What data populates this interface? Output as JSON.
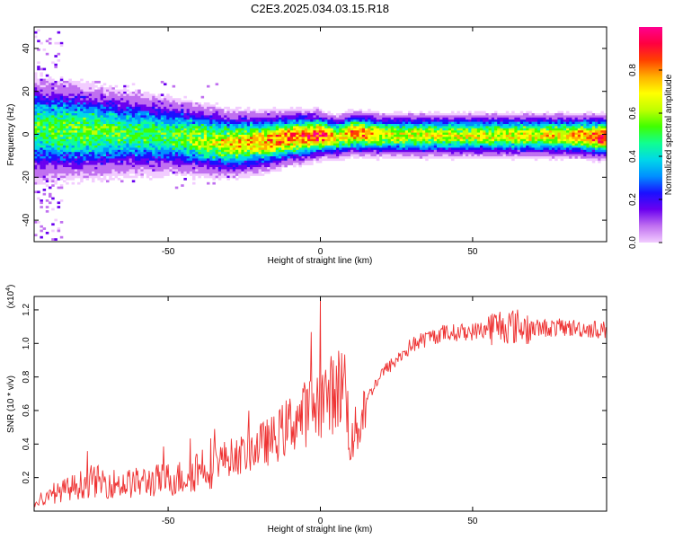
{
  "title": "C2E3.2025.034.03.15.R18",
  "chart_data": [
    {
      "type": "heatmap",
      "xlabel": "Height of straight line (km)",
      "ylabel": "Frequency (Hz)",
      "xlim": [
        -94,
        94
      ],
      "ylim": [
        -50,
        50
      ],
      "xticks": [
        -50,
        0,
        50
      ],
      "yticks": [
        -40,
        -20,
        0,
        20,
        40
      ],
      "colorbar": {
        "label": "Normalized spectral amplitude",
        "range": [
          0,
          1
        ],
        "ticks": [
          "0.0",
          "0.2",
          "0.4",
          "0.6",
          "0.8"
        ],
        "colors": [
          "#f2ccff",
          "#c070f0",
          "#6a00f0",
          "#1a10ff",
          "#0090ff",
          "#00d8e8",
          "#10ff90",
          "#40ff00",
          "#c0ff00",
          "#ffff00",
          "#ffb000",
          "#ff4000",
          "#ff0040",
          "#ff0090"
        ]
      },
      "ridge": {
        "x": [
          -94,
          -80,
          -65,
          -50,
          -40,
          -30,
          -20,
          -10,
          0,
          5,
          10,
          20,
          40,
          60,
          80,
          94
        ],
        "frequency": [
          3,
          2,
          1,
          0,
          -2,
          -4,
          -3,
          -1,
          0,
          -1,
          1,
          0,
          0,
          0,
          0,
          -1
        ],
        "peak_amplitude": [
          0.55,
          0.6,
          0.55,
          0.55,
          0.65,
          0.75,
          0.8,
          0.85,
          0.95,
          0.7,
          0.9,
          0.7,
          0.7,
          0.7,
          0.75,
          0.95
        ]
      }
    },
    {
      "type": "line",
      "xlabel": "Height of straight line (km)",
      "ylabel": "SNR (10 * v/v)",
      "y_multiplier_label": "(x10",
      "y_multiplier_exp": "4",
      "xlim": [
        -94,
        94
      ],
      "ylim": [
        0,
        12800
      ],
      "xticks": [
        -50,
        0,
        50
      ],
      "yticks": [
        "0.2",
        "0.4",
        "0.6",
        "0.8",
        "1.0",
        "1.2"
      ],
      "color": "#ee3333",
      "series": [
        {
          "x": [
            -94,
            -85,
            -75,
            -65,
            -55,
            -45,
            -40,
            -35,
            -30,
            -25,
            -20,
            -15,
            -10,
            -5,
            0,
            5,
            8,
            10,
            15,
            20,
            25,
            30,
            35,
            40,
            50,
            60,
            70,
            80,
            94
          ],
          "y": [
            400,
            1200,
            1800,
            1600,
            1800,
            2000,
            2600,
            3000,
            3200,
            3400,
            3900,
            4300,
            5200,
            5800,
            6600,
            7100,
            7800,
            3800,
            6600,
            8200,
            9000,
            9900,
            10300,
            10600,
            10700,
            11100,
            10900,
            10950,
            10800
          ]
        }
      ]
    }
  ]
}
